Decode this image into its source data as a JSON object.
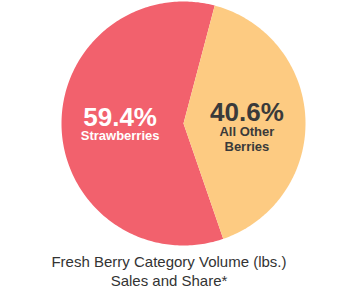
{
  "chart_data": {
    "type": "pie",
    "title": "Fresh Berry Category Volume (lbs.)",
    "subtitle": "Sales and Share*",
    "categories": [
      "Strawberries",
      "All Other Berries"
    ],
    "values": [
      59.4,
      40.6
    ],
    "value_labels": [
      "59.4%",
      "40.6%"
    ],
    "colors": [
      "#f2616d",
      "#fdcb82"
    ],
    "data_labels": true
  }
}
